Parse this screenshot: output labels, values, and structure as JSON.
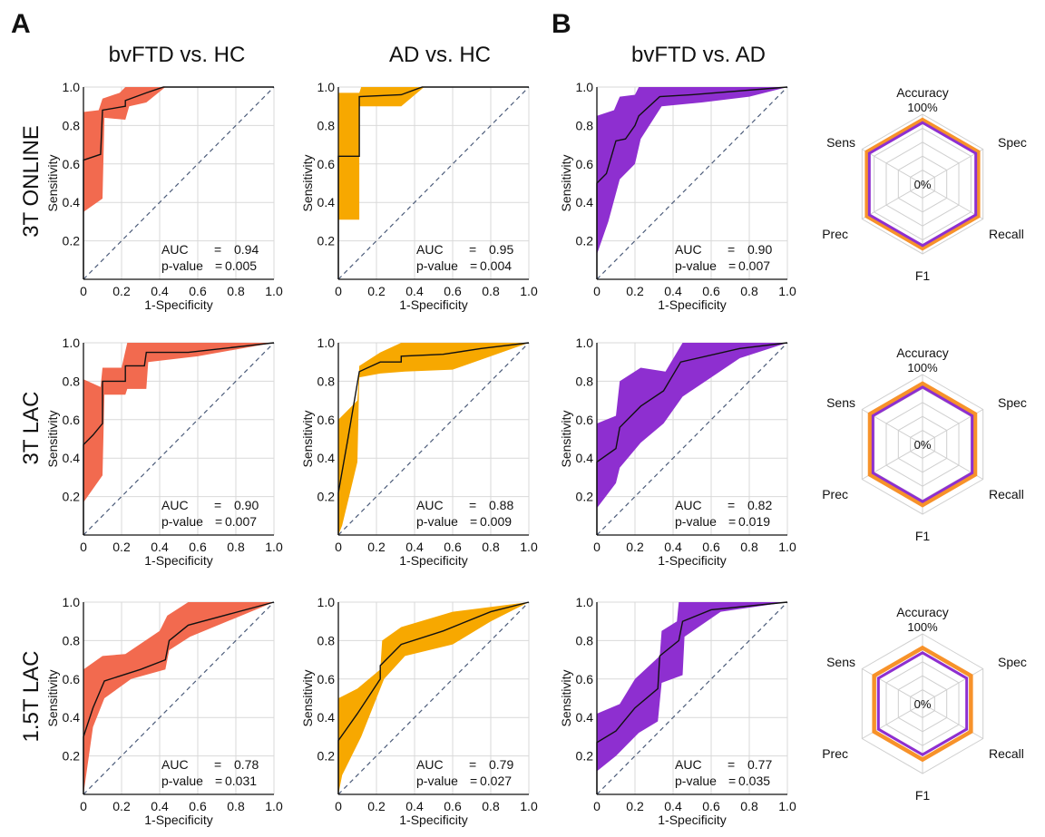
{
  "panels": {
    "a": "A",
    "b": "B"
  },
  "columns": [
    "bvFTD vs. HC",
    "AD vs. HC",
    "bvFTD vs. AD"
  ],
  "rows": [
    "3T ONLINE",
    "3T LAC",
    "1.5T LAC"
  ],
  "colors": {
    "bvftd_hc": "#F26A4F",
    "ad_hc": "#F7A800",
    "bvftd_ad": "#8E2FD0",
    "radar_outer": "#F7922A",
    "radar_inner": "#8E2FD0",
    "diag": "#4C5C7A",
    "grid": "#D9D9D9"
  },
  "axis": {
    "xlabel": "1-Specificity",
    "ylabel": "Sensitivity",
    "xticks": [
      "0",
      "0.2",
      "0.4",
      "0.6",
      "0.8",
      "1.0"
    ],
    "yticks": [
      "0.2",
      "0.4",
      "0.6",
      "0.8",
      "1.0"
    ]
  },
  "stat_labels": {
    "auc": "AUC",
    "eq": "=",
    "p": "p-value",
    "p_eq": "="
  },
  "radar": {
    "axes": [
      "Accuracy",
      "Spec",
      "Recall",
      "F1",
      "Prec",
      "Sens"
    ],
    "max_label": "100%",
    "min_label": "0%"
  },
  "chart_data": [
    {
      "type": "line",
      "row": "3T ONLINE",
      "title": "bvFTD vs. HC",
      "xlabel": "1-Specificity",
      "ylabel": "Sensitivity",
      "xlim": [
        0,
        1
      ],
      "ylim": [
        0,
        1
      ],
      "auc": "0.94",
      "p_value": "0.005",
      "roc": [
        [
          0,
          0
        ],
        [
          0,
          0.62
        ],
        [
          0.09,
          0.65
        ],
        [
          0.1,
          0.88
        ],
        [
          0.22,
          0.9
        ],
        [
          0.22,
          0.93
        ],
        [
          0.33,
          0.97
        ],
        [
          0.42,
          1.0
        ],
        [
          1,
          1
        ]
      ],
      "upper": [
        [
          0,
          0.4
        ],
        [
          0,
          0.87
        ],
        [
          0.08,
          0.88
        ],
        [
          0.1,
          0.94
        ],
        [
          0.19,
          0.97
        ],
        [
          0.22,
          1.0
        ],
        [
          1,
          1
        ]
      ],
      "lower": [
        [
          0,
          0
        ],
        [
          0,
          0.35
        ],
        [
          0.1,
          0.42
        ],
        [
          0.11,
          0.84
        ],
        [
          0.22,
          0.83
        ],
        [
          0.24,
          0.9
        ],
        [
          0.33,
          0.92
        ],
        [
          0.43,
          1.0
        ],
        [
          1,
          1
        ]
      ]
    },
    {
      "type": "line",
      "row": "3T ONLINE",
      "title": "AD vs. HC",
      "xlabel": "1-Specificity",
      "ylabel": "Sensitivity",
      "xlim": [
        0,
        1
      ],
      "ylim": [
        0,
        1
      ],
      "auc": "0.95",
      "p_value": "0.004",
      "roc": [
        [
          0,
          0
        ],
        [
          0,
          0.64
        ],
        [
          0.11,
          0.64
        ],
        [
          0.11,
          0.95
        ],
        [
          0.33,
          0.96
        ],
        [
          0.44,
          1.0
        ],
        [
          1,
          1
        ]
      ],
      "upper": [
        [
          0,
          0
        ],
        [
          0,
          0.97
        ],
        [
          0.11,
          0.97
        ],
        [
          0.12,
          1.0
        ],
        [
          1,
          1
        ]
      ],
      "lower": [
        [
          0,
          0
        ],
        [
          0,
          0.31
        ],
        [
          0.11,
          0.31
        ],
        [
          0.11,
          0.9
        ],
        [
          0.33,
          0.9
        ],
        [
          0.45,
          1.0
        ],
        [
          1,
          1
        ]
      ]
    },
    {
      "type": "line",
      "row": "3T ONLINE",
      "title": "bvFTD vs. AD",
      "xlabel": "1-Specificity",
      "ylabel": "Sensitivity",
      "xlim": [
        0,
        1
      ],
      "ylim": [
        0,
        1
      ],
      "auc": "0.90",
      "p_value": "0.007",
      "roc": [
        [
          0,
          0
        ],
        [
          0,
          0.5
        ],
        [
          0.05,
          0.55
        ],
        [
          0.1,
          0.72
        ],
        [
          0.15,
          0.73
        ],
        [
          0.2,
          0.8
        ],
        [
          0.22,
          0.85
        ],
        [
          0.33,
          0.95
        ],
        [
          0.5,
          0.96
        ],
        [
          1,
          1
        ]
      ],
      "upper": [
        [
          0,
          0.1
        ],
        [
          0,
          0.85
        ],
        [
          0.09,
          0.88
        ],
        [
          0.12,
          0.95
        ],
        [
          0.2,
          0.96
        ],
        [
          0.22,
          1.0
        ],
        [
          1,
          1
        ]
      ],
      "lower": [
        [
          0,
          0
        ],
        [
          0,
          0.13
        ],
        [
          0.06,
          0.3
        ],
        [
          0.12,
          0.52
        ],
        [
          0.2,
          0.6
        ],
        [
          0.23,
          0.73
        ],
        [
          0.34,
          0.9
        ],
        [
          0.55,
          0.92
        ],
        [
          0.8,
          0.95
        ],
        [
          1,
          1
        ]
      ]
    },
    {
      "type": "line",
      "row": "3T LAC",
      "title": "bvFTD vs. HC",
      "xlabel": "1-Specificity",
      "ylabel": "Sensitivity",
      "xlim": [
        0,
        1
      ],
      "ylim": [
        0,
        1
      ],
      "auc": "0.90",
      "p_value": "0.007",
      "roc": [
        [
          0,
          0
        ],
        [
          0,
          0.47
        ],
        [
          0.05,
          0.52
        ],
        [
          0.1,
          0.58
        ],
        [
          0.1,
          0.8
        ],
        [
          0.22,
          0.8
        ],
        [
          0.22,
          0.88
        ],
        [
          0.32,
          0.88
        ],
        [
          0.33,
          0.95
        ],
        [
          0.55,
          0.95
        ],
        [
          1,
          1
        ]
      ],
      "upper": [
        [
          0,
          0.2
        ],
        [
          0,
          0.81
        ],
        [
          0.09,
          0.77
        ],
        [
          0.1,
          0.87
        ],
        [
          0.2,
          0.87
        ],
        [
          0.23,
          1.0
        ],
        [
          1,
          1
        ]
      ],
      "lower": [
        [
          0,
          0
        ],
        [
          0,
          0.17
        ],
        [
          0.1,
          0.31
        ],
        [
          0.11,
          0.73
        ],
        [
          0.22,
          0.73
        ],
        [
          0.23,
          0.76
        ],
        [
          0.33,
          0.76
        ],
        [
          0.34,
          0.9
        ],
        [
          0.6,
          0.93
        ],
        [
          1,
          1
        ]
      ]
    },
    {
      "type": "line",
      "row": "3T LAC",
      "title": "AD vs. HC",
      "xlabel": "1-Specificity",
      "ylabel": "Sensitivity",
      "xlim": [
        0,
        1
      ],
      "ylim": [
        0,
        1
      ],
      "auc": "0.88",
      "p_value": "0.009",
      "roc": [
        [
          0,
          0
        ],
        [
          0,
          0.22
        ],
        [
          0.05,
          0.5
        ],
        [
          0.11,
          0.85
        ],
        [
          0.22,
          0.9
        ],
        [
          0.33,
          0.9
        ],
        [
          0.33,
          0.93
        ],
        [
          0.55,
          0.94
        ],
        [
          0.75,
          0.97
        ],
        [
          1,
          1
        ]
      ],
      "upper": [
        [
          0,
          0.2
        ],
        [
          0,
          0.6
        ],
        [
          0.1,
          0.7
        ],
        [
          0.11,
          0.88
        ],
        [
          0.22,
          0.95
        ],
        [
          0.33,
          1.0
        ],
        [
          1,
          1
        ]
      ],
      "lower": [
        [
          0,
          0
        ],
        [
          0.02,
          0.05
        ],
        [
          0.1,
          0.38
        ],
        [
          0.11,
          0.82
        ],
        [
          0.22,
          0.84
        ],
        [
          0.35,
          0.85
        ],
        [
          0.6,
          0.86
        ],
        [
          0.8,
          0.93
        ],
        [
          1,
          1
        ]
      ]
    },
    {
      "type": "line",
      "row": "3T LAC",
      "title": "bvFTD vs. AD",
      "xlabel": "1-Specificity",
      "ylabel": "Sensitivity",
      "xlim": [
        0,
        1
      ],
      "ylim": [
        0,
        1
      ],
      "auc": "0.82",
      "p_value": "0.019",
      "roc": [
        [
          0,
          0
        ],
        [
          0,
          0.38
        ],
        [
          0.1,
          0.45
        ],
        [
          0.12,
          0.56
        ],
        [
          0.23,
          0.67
        ],
        [
          0.35,
          0.75
        ],
        [
          0.44,
          0.9
        ],
        [
          0.75,
          0.97
        ],
        [
          1,
          1
        ]
      ],
      "upper": [
        [
          0,
          0.2
        ],
        [
          0,
          0.58
        ],
        [
          0.1,
          0.62
        ],
        [
          0.12,
          0.8
        ],
        [
          0.23,
          0.87
        ],
        [
          0.36,
          0.85
        ],
        [
          0.45,
          1.0
        ],
        [
          1,
          1
        ]
      ],
      "lower": [
        [
          0,
          0
        ],
        [
          0,
          0.14
        ],
        [
          0.1,
          0.27
        ],
        [
          0.12,
          0.35
        ],
        [
          0.23,
          0.48
        ],
        [
          0.35,
          0.58
        ],
        [
          0.45,
          0.72
        ],
        [
          0.75,
          0.92
        ],
        [
          1,
          1
        ]
      ]
    },
    {
      "type": "line",
      "row": "1.5T LAC",
      "title": "bvFTD vs. HC",
      "xlabel": "1-Specificity",
      "ylabel": "Sensitivity",
      "xlim": [
        0,
        1
      ],
      "ylim": [
        0,
        1
      ],
      "auc": "0.78",
      "p_value": "0.031",
      "roc": [
        [
          0,
          0
        ],
        [
          0,
          0.3
        ],
        [
          0.05,
          0.45
        ],
        [
          0.11,
          0.59
        ],
        [
          0.3,
          0.65
        ],
        [
          0.43,
          0.7
        ],
        [
          0.45,
          0.8
        ],
        [
          0.55,
          0.88
        ],
        [
          1,
          1
        ]
      ],
      "upper": [
        [
          0,
          0.1
        ],
        [
          0,
          0.65
        ],
        [
          0.1,
          0.72
        ],
        [
          0.22,
          0.73
        ],
        [
          0.4,
          0.85
        ],
        [
          0.44,
          0.93
        ],
        [
          0.55,
          1.0
        ],
        [
          1,
          1
        ]
      ],
      "lower": [
        [
          0,
          0
        ],
        [
          0.05,
          0.35
        ],
        [
          0.11,
          0.5
        ],
        [
          0.25,
          0.6
        ],
        [
          0.43,
          0.65
        ],
        [
          0.45,
          0.75
        ],
        [
          0.56,
          0.82
        ],
        [
          1,
          1
        ]
      ]
    },
    {
      "type": "line",
      "row": "1.5T LAC",
      "title": "AD vs. HC",
      "xlabel": "1-Specificity",
      "ylabel": "Sensitivity",
      "xlim": [
        0,
        1
      ],
      "ylim": [
        0,
        1
      ],
      "auc": "0.79",
      "p_value": "0.027",
      "roc": [
        [
          0,
          0
        ],
        [
          0,
          0.28
        ],
        [
          0.1,
          0.42
        ],
        [
          0.22,
          0.6
        ],
        [
          0.22,
          0.67
        ],
        [
          0.33,
          0.78
        ],
        [
          0.55,
          0.85
        ],
        [
          0.8,
          0.95
        ],
        [
          1,
          1
        ]
      ],
      "upper": [
        [
          0,
          0.1
        ],
        [
          0,
          0.5
        ],
        [
          0.1,
          0.55
        ],
        [
          0.22,
          0.65
        ],
        [
          0.23,
          0.8
        ],
        [
          0.33,
          0.87
        ],
        [
          0.6,
          0.95
        ],
        [
          1,
          1
        ]
      ],
      "lower": [
        [
          0,
          0
        ],
        [
          0.02,
          0.1
        ],
        [
          0.12,
          0.3
        ],
        [
          0.22,
          0.55
        ],
        [
          0.24,
          0.6
        ],
        [
          0.35,
          0.72
        ],
        [
          0.6,
          0.78
        ],
        [
          0.8,
          0.9
        ],
        [
          1,
          1
        ]
      ]
    },
    {
      "type": "line",
      "row": "1.5T LAC",
      "title": "bvFTD vs. AD",
      "xlabel": "1-Specificity",
      "ylabel": "Sensitivity",
      "xlim": [
        0,
        1
      ],
      "ylim": [
        0,
        1
      ],
      "auc": "0.77",
      "p_value": "0.035",
      "roc": [
        [
          0,
          0
        ],
        [
          0,
          0.27
        ],
        [
          0.1,
          0.33
        ],
        [
          0.2,
          0.45
        ],
        [
          0.32,
          0.55
        ],
        [
          0.33,
          0.72
        ],
        [
          0.43,
          0.8
        ],
        [
          0.45,
          0.9
        ],
        [
          0.6,
          0.96
        ],
        [
          1,
          1
        ]
      ],
      "upper": [
        [
          0,
          0.1
        ],
        [
          0,
          0.42
        ],
        [
          0.12,
          0.47
        ],
        [
          0.2,
          0.6
        ],
        [
          0.33,
          0.72
        ],
        [
          0.34,
          0.85
        ],
        [
          0.42,
          0.9
        ],
        [
          0.43,
          1.0
        ],
        [
          1,
          1
        ]
      ],
      "lower": [
        [
          0,
          0
        ],
        [
          0,
          0.12
        ],
        [
          0.1,
          0.2
        ],
        [
          0.22,
          0.32
        ],
        [
          0.32,
          0.38
        ],
        [
          0.34,
          0.58
        ],
        [
          0.45,
          0.62
        ],
        [
          0.46,
          0.82
        ],
        [
          0.65,
          0.95
        ],
        [
          1,
          1
        ]
      ]
    },
    {
      "type": "radar",
      "row": "3T ONLINE",
      "axes": [
        "Accuracy",
        "Spec",
        "Recall",
        "F1",
        "Prec",
        "Sens"
      ],
      "series": [
        {
          "values": [
            0.92,
            0.92,
            0.92,
            0.92,
            0.92,
            0.92
          ]
        },
        {
          "values": [
            0.88,
            0.88,
            0.88,
            0.88,
            0.88,
            0.88
          ]
        }
      ]
    },
    {
      "type": "radar",
      "row": "3T LAC",
      "axes": [
        "Accuracy",
        "Spec",
        "Recall",
        "F1",
        "Prec",
        "Sens"
      ],
      "series": [
        {
          "values": [
            0.87,
            0.87,
            0.87,
            0.87,
            0.87,
            0.87
          ]
        },
        {
          "values": [
            0.82,
            0.82,
            0.82,
            0.82,
            0.82,
            0.82
          ]
        }
      ]
    },
    {
      "type": "radar",
      "row": "1.5T LAC",
      "axes": [
        "Accuracy",
        "Spec",
        "Recall",
        "F1",
        "Prec",
        "Sens"
      ],
      "series": [
        {
          "values": [
            0.8,
            0.8,
            0.8,
            0.8,
            0.8,
            0.8
          ]
        },
        {
          "values": [
            0.73,
            0.73,
            0.73,
            0.73,
            0.73,
            0.73
          ]
        }
      ]
    }
  ]
}
